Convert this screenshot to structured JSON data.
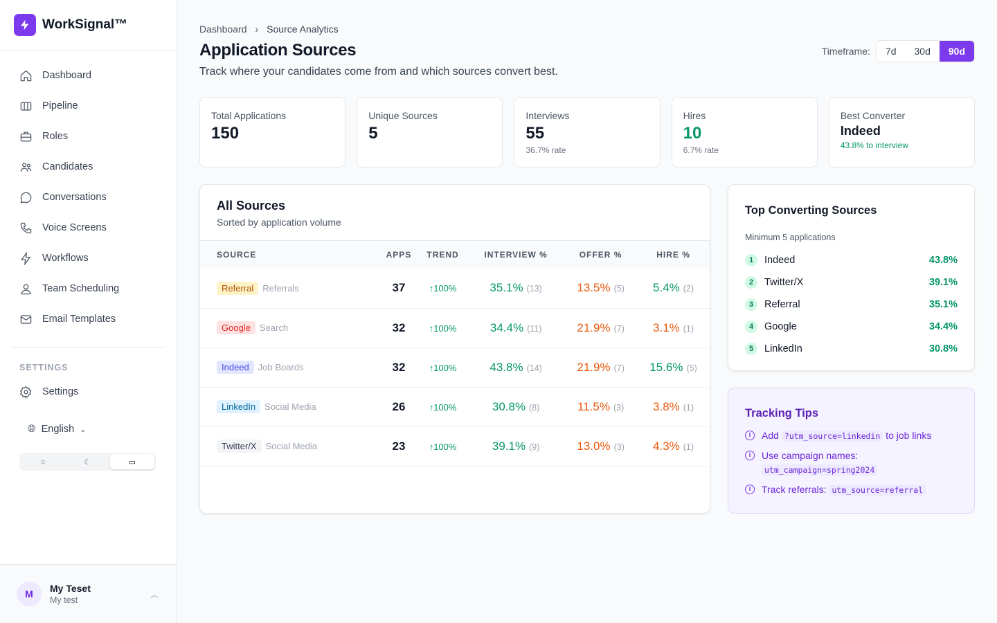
{
  "app": {
    "name": "WorkSignal™"
  },
  "sidebar": {
    "items": [
      {
        "label": "Dashboard",
        "icon": "home-icon"
      },
      {
        "label": "Pipeline",
        "icon": "columns-icon"
      },
      {
        "label": "Roles",
        "icon": "briefcase-icon"
      },
      {
        "label": "Candidates",
        "icon": "users-icon"
      },
      {
        "label": "Conversations",
        "icon": "chat-icon"
      },
      {
        "label": "Voice Screens",
        "icon": "phone-icon"
      },
      {
        "label": "Workflows",
        "icon": "bolt-icon"
      },
      {
        "label": "Team Scheduling",
        "icon": "team-icon"
      },
      {
        "label": "Email Templates",
        "icon": "mail-icon"
      }
    ],
    "settings_header": "SETTINGS",
    "settings_label": "Settings",
    "language": "English",
    "theme_selected": "system"
  },
  "user": {
    "initial": "M",
    "name": "My Teset",
    "sub": "My test"
  },
  "breadcrumb": [
    "Dashboard",
    "Source Analytics"
  ],
  "header": {
    "title": "Application Sources",
    "subtitle": "Track where your candidates come from and which sources convert best.",
    "timeframe_label": "Timeframe:",
    "timeframes": [
      "7d",
      "30d",
      "90d"
    ],
    "timeframe_selected": "90d"
  },
  "stats": [
    {
      "label": "Total Applications",
      "value": "150",
      "sub": ""
    },
    {
      "label": "Unique Sources",
      "value": "5",
      "sub": ""
    },
    {
      "label": "Interviews",
      "value": "55",
      "sub": "36.7% rate"
    },
    {
      "label": "Hires",
      "value": "10",
      "sub": "6.7% rate"
    },
    {
      "label": "Best Converter",
      "value": "Indeed",
      "sub": "43.8% to interview"
    }
  ],
  "sources": {
    "title": "All Sources",
    "subtitle": "Sorted by application volume",
    "columns": [
      "SOURCE",
      "APPS",
      "TREND",
      "INTERVIEW %",
      "OFFER %",
      "HIRE %"
    ],
    "rows": [
      {
        "source": "Referral",
        "category": "Referrals",
        "apps": "37",
        "trend": "↑100%",
        "interview": "35.1%",
        "interview_n": "(13)",
        "offer": "13.5%",
        "offer_n": "(5)",
        "hire": "5.4%",
        "hire_n": "(2)",
        "badge_bg": "#fef3c7",
        "badge_fg": "#b45309",
        "hire_color": "#059669"
      },
      {
        "source": "Google",
        "category": "Search",
        "apps": "32",
        "trend": "↑100%",
        "interview": "34.4%",
        "interview_n": "(11)",
        "offer": "21.9%",
        "offer_n": "(7)",
        "hire": "3.1%",
        "hire_n": "(1)",
        "badge_bg": "#fee2e2",
        "badge_fg": "#dc2626",
        "hire_color": "#ea580c"
      },
      {
        "source": "Indeed",
        "category": "Job Boards",
        "apps": "32",
        "trend": "↑100%",
        "interview": "43.8%",
        "interview_n": "(14)",
        "offer": "21.9%",
        "offer_n": "(7)",
        "hire": "15.6%",
        "hire_n": "(5)",
        "badge_bg": "#e0e7ff",
        "badge_fg": "#4f46e5",
        "hire_color": "#059669"
      },
      {
        "source": "LinkedIn",
        "category": "Social Media",
        "apps": "26",
        "trend": "↑100%",
        "interview": "30.8%",
        "interview_n": "(8)",
        "offer": "11.5%",
        "offer_n": "(3)",
        "hire": "3.8%",
        "hire_n": "(1)",
        "badge_bg": "#e0f2fe",
        "badge_fg": "#0369a1",
        "hire_color": "#ea580c"
      },
      {
        "source": "Twitter/X",
        "category": "Social Media",
        "apps": "23",
        "trend": "↑100%",
        "interview": "39.1%",
        "interview_n": "(9)",
        "offer": "13.0%",
        "offer_n": "(3)",
        "hire": "4.3%",
        "hire_n": "(1)",
        "badge_bg": "#f3f4f6",
        "badge_fg": "#374151",
        "hire_color": "#ea580c"
      }
    ]
  },
  "top": {
    "title": "Top Converting Sources",
    "subtitle": "Minimum 5 applications",
    "items": [
      {
        "rank": "1",
        "name": "Indeed",
        "value": "43.8%"
      },
      {
        "rank": "2",
        "name": "Twitter/X",
        "value": "39.1%"
      },
      {
        "rank": "3",
        "name": "Referral",
        "value": "35.1%"
      },
      {
        "rank": "4",
        "name": "Google",
        "value": "34.4%"
      },
      {
        "rank": "5",
        "name": "LinkedIn",
        "value": "30.8%"
      }
    ]
  },
  "tips": {
    "title": "Tracking Tips",
    "items": [
      {
        "pre": "Add",
        "code": "?utm_source=linkedin",
        "post": "to job links"
      },
      {
        "pre": "Use campaign names:",
        "code": "utm_campaign=spring2024",
        "post": ""
      },
      {
        "pre": "Track referrals:",
        "code": "utm_source=referral",
        "post": ""
      }
    ]
  }
}
